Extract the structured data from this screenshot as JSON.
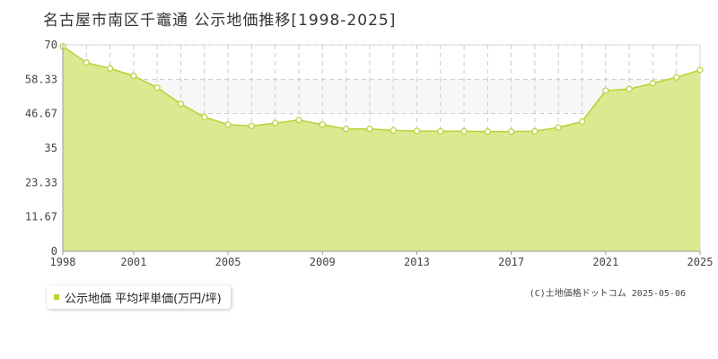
{
  "title": "名古屋市南区千竈通 公示地価推移[1998-2025]",
  "copyright": "(C)土地価格ドットコム 2025-05-06",
  "legend": {
    "label": "公示地価 平均坪単価(万円/坪)",
    "color": "#b5d334"
  },
  "colors": {
    "fill": "#d9ea90",
    "line": "#b5d334",
    "band": "#f7f7f7",
    "grid": "#cccccc"
  },
  "chart_data": {
    "type": "area",
    "title": "名古屋市南区千竈通 公示地価推移[1998-2025]",
    "xlabel": "",
    "ylabel": "",
    "x": [
      1998,
      1999,
      2000,
      2001,
      2002,
      2003,
      2004,
      2005,
      2006,
      2007,
      2008,
      2009,
      2010,
      2011,
      2012,
      2013,
      2014,
      2015,
      2016,
      2017,
      2018,
      2019,
      2020,
      2021,
      2022,
      2023,
      2024,
      2025
    ],
    "series": [
      {
        "name": "公示地価 平均坪単価(万円/坪)",
        "values": [
          69.5,
          64.0,
          62.0,
          59.5,
          55.5,
          50.0,
          45.5,
          43.0,
          42.5,
          43.5,
          44.5,
          43.0,
          41.5,
          41.5,
          41.0,
          40.8,
          40.7,
          40.7,
          40.6,
          40.6,
          40.7,
          42.0,
          44.0,
          54.5,
          55.0,
          57.0,
          59.0,
          61.5
        ]
      }
    ],
    "xlim": [
      1998,
      2025
    ],
    "ylim": [
      0,
      70
    ],
    "x_ticks": [
      "1998",
      "2001",
      "2005",
      "2009",
      "2013",
      "2017",
      "2021",
      "2025"
    ],
    "y_ticks": [
      "0",
      "11.67",
      "23.33",
      "35",
      "46.67",
      "58.33",
      "70"
    ],
    "grid": true,
    "legend_position": "bottom-left"
  }
}
